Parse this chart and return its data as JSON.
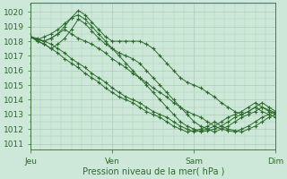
{
  "background_color": "#cde8d8",
  "grid_color": "#aaccb8",
  "line_color": "#2d6a2d",
  "marker_color": "#2d6a2d",
  "ylabel_ticks": [
    1011,
    1012,
    1013,
    1014,
    1015,
    1016,
    1017,
    1018,
    1019,
    1020
  ],
  "xlabels": [
    "Jeu",
    "Ven",
    "Sam",
    "Dim"
  ],
  "xlabel": "Pression niveau de la mer( hPa )",
  "ylim": [
    1010.6,
    1020.6
  ],
  "xlim": [
    0,
    72
  ],
  "day_positions": [
    0,
    24,
    48,
    72
  ],
  "series": [
    {
      "x": [
        0,
        2,
        4,
        6,
        8,
        10,
        12,
        14,
        16,
        18,
        20,
        22,
        24,
        26,
        28,
        30,
        32,
        34,
        36,
        38,
        40,
        42,
        44,
        46,
        48,
        50,
        52,
        54,
        56,
        58,
        60,
        62,
        64,
        66,
        68,
        70,
        72
      ],
      "y": [
        1018.3,
        1018.1,
        1018.0,
        1018.2,
        1018.5,
        1019.0,
        1019.6,
        1020.1,
        1019.8,
        1019.3,
        1018.8,
        1018.3,
        1018.0,
        1018.0,
        1018.0,
        1018.0,
        1018.0,
        1017.8,
        1017.5,
        1017.0,
        1016.5,
        1016.0,
        1015.5,
        1015.2,
        1015.0,
        1014.8,
        1014.5,
        1014.2,
        1013.8,
        1013.5,
        1013.2,
        1013.0,
        1013.2,
        1013.5,
        1013.8,
        1013.5,
        1013.2
      ]
    },
    {
      "x": [
        0,
        2,
        4,
        6,
        8,
        10,
        12,
        14,
        16,
        18,
        20,
        22,
        24,
        26,
        28,
        30,
        32,
        34,
        36,
        38,
        40,
        42,
        44,
        46,
        48,
        50,
        52,
        54,
        56,
        58,
        60,
        62,
        64,
        66,
        68,
        70,
        72
      ],
      "y": [
        1018.3,
        1018.0,
        1017.8,
        1017.5,
        1017.8,
        1018.2,
        1018.8,
        1019.5,
        1019.2,
        1018.7,
        1018.2,
        1017.8,
        1017.5,
        1017.2,
        1017.0,
        1016.8,
        1016.5,
        1016.0,
        1015.5,
        1015.0,
        1014.5,
        1014.0,
        1013.5,
        1013.0,
        1012.5,
        1012.2,
        1012.0,
        1011.8,
        1012.0,
        1012.2,
        1012.5,
        1012.8,
        1013.0,
        1013.2,
        1013.5,
        1013.3,
        1013.1
      ]
    },
    {
      "x": [
        0,
        2,
        4,
        6,
        8,
        10,
        12,
        14,
        16,
        18,
        20,
        22,
        24,
        26,
        28,
        30,
        32,
        34,
        36,
        38,
        40,
        42,
        44,
        46,
        48,
        50,
        52,
        54,
        56,
        58,
        60,
        62,
        64,
        66,
        68,
        70,
        72
      ],
      "y": [
        1018.3,
        1018.1,
        1018.3,
        1018.5,
        1018.8,
        1019.2,
        1019.6,
        1019.8,
        1019.5,
        1019.0,
        1018.5,
        1018.0,
        1017.5,
        1017.0,
        1016.5,
        1016.0,
        1015.5,
        1015.0,
        1014.5,
        1014.0,
        1013.5,
        1013.0,
        1012.5,
        1012.2,
        1012.0,
        1011.8,
        1011.9,
        1012.0,
        1012.2,
        1012.5,
        1012.8,
        1013.0,
        1013.2,
        1013.5,
        1013.2,
        1013.0,
        1012.8
      ]
    },
    {
      "x": [
        0,
        2,
        4,
        6,
        8,
        10,
        12,
        14,
        16,
        18,
        20,
        22,
        24,
        26,
        28,
        30,
        32,
        34,
        36,
        38,
        40,
        42,
        44,
        46,
        48,
        50,
        52,
        54,
        56,
        58,
        60,
        62,
        64,
        66,
        68,
        70,
        72
      ],
      "y": [
        1018.3,
        1018.2,
        1018.0,
        1017.8,
        1017.5,
        1017.2,
        1016.8,
        1016.5,
        1016.2,
        1015.8,
        1015.5,
        1015.2,
        1014.8,
        1014.5,
        1014.2,
        1014.0,
        1013.8,
        1013.5,
        1013.2,
        1013.0,
        1012.8,
        1012.5,
        1012.2,
        1012.0,
        1011.8,
        1011.9,
        1012.0,
        1012.2,
        1012.5,
        1012.8,
        1013.0,
        1013.2,
        1013.5,
        1013.8,
        1013.5,
        1013.2,
        1013.0
      ]
    },
    {
      "x": [
        0,
        2,
        4,
        6,
        8,
        10,
        12,
        14,
        16,
        18,
        20,
        22,
        24,
        26,
        28,
        30,
        32,
        34,
        36,
        38,
        40,
        42,
        44,
        46,
        48,
        50,
        52,
        54,
        56,
        58,
        60,
        62,
        64,
        66,
        68,
        70,
        72
      ],
      "y": [
        1018.3,
        1018.0,
        1017.8,
        1017.5,
        1017.2,
        1016.8,
        1016.5,
        1016.2,
        1015.8,
        1015.5,
        1015.2,
        1014.8,
        1014.5,
        1014.2,
        1014.0,
        1013.8,
        1013.5,
        1013.2,
        1013.0,
        1012.8,
        1012.5,
        1012.2,
        1012.0,
        1011.8,
        1011.9,
        1012.0,
        1012.2,
        1012.5,
        1012.2,
        1012.0,
        1011.9,
        1011.8,
        1012.0,
        1012.2,
        1012.5,
        1012.8,
        1013.0
      ]
    },
    {
      "x": [
        0,
        2,
        4,
        6,
        8,
        10,
        12,
        14,
        16,
        18,
        20,
        22,
        24,
        26,
        28,
        30,
        32,
        34,
        36,
        38,
        40,
        42,
        44,
        46,
        48,
        50,
        52,
        54,
        56,
        58,
        60,
        62,
        64,
        66,
        68,
        70,
        72
      ],
      "y": [
        1018.3,
        1018.1,
        1018.0,
        1018.2,
        1018.5,
        1018.8,
        1018.5,
        1018.2,
        1018.0,
        1017.8,
        1017.5,
        1017.2,
        1016.8,
        1016.5,
        1016.2,
        1015.8,
        1015.5,
        1015.2,
        1014.8,
        1014.5,
        1014.2,
        1013.8,
        1013.5,
        1013.2,
        1013.0,
        1012.8,
        1012.5,
        1012.2,
        1012.0,
        1011.9,
        1011.8,
        1012.0,
        1012.2,
        1012.5,
        1012.8,
        1013.0,
        1013.2
      ]
    }
  ]
}
